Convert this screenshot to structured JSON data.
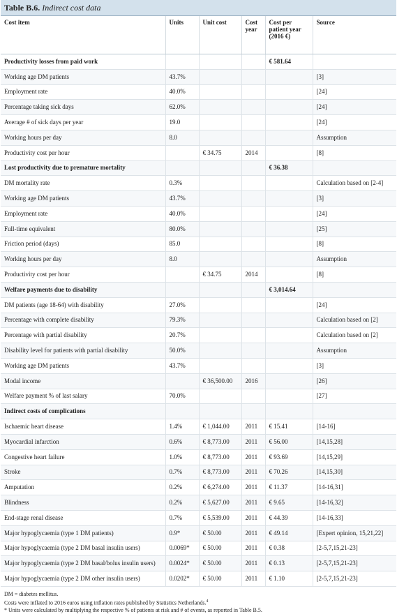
{
  "title": {
    "label": "Table B.6.",
    "text": "Indirect cost data"
  },
  "table": {
    "columns": [
      "Cost item",
      "Units",
      "Unit cost",
      "Cost year",
      "Cost per patient year (2016 €)",
      "Source"
    ],
    "rows": [
      {
        "section": "Productivity losses from paid work",
        "cost": "€ 581.64"
      },
      {
        "item": "Working age DM patients",
        "units": "43.7%",
        "source": "[3]"
      },
      {
        "item": "Employment rate",
        "units": "40.0%",
        "source": "[24]"
      },
      {
        "item": "Percentage taking sick days",
        "units": "62.0%",
        "source": "[24]"
      },
      {
        "item": "Average # of sick days per year",
        "units": "19.0",
        "source": "[24]"
      },
      {
        "item": "Working hours per day",
        "units": "8.0",
        "source": "Assumption"
      },
      {
        "item": "Productivity cost per hour",
        "unit_cost": "€ 34.75",
        "year": "2014",
        "source": "[8]"
      },
      {
        "section": "Lost productivity due to premature mortality",
        "cost": "€ 36.38"
      },
      {
        "item": "DM mortality rate",
        "units": "0.3%",
        "source": "Calculation based on [2-4]"
      },
      {
        "item": "Working age DM patients",
        "units": "43.7%",
        "source": "[3]"
      },
      {
        "item": "Employment rate",
        "units": "40.0%",
        "source": "[24]"
      },
      {
        "item": "Full-time equivalent",
        "units": "80.0%",
        "source": "[25]"
      },
      {
        "item": "Friction period (days)",
        "units": "85.0",
        "source": "[8]"
      },
      {
        "item": "Working hours per day",
        "units": "8.0",
        "source": "Assumption"
      },
      {
        "item": "Productivity cost per hour",
        "unit_cost": "€ 34.75",
        "year": "2014",
        "source": "[8]"
      },
      {
        "section": "Welfare payments due to disability",
        "cost": "€ 3,014.64"
      },
      {
        "item": "DM patients (age 18-64) with disability",
        "units": "27.0%",
        "source": "[24]"
      },
      {
        "item": "Percentage with complete disability",
        "units": "79.3%",
        "source": "Calculation based on [2]"
      },
      {
        "item": "Percentage with partial disability",
        "units": "20.7%",
        "source": "Calculation based on [2]"
      },
      {
        "item": "Disability level for patients with partial disability",
        "units": "50.0%",
        "source": "Assumption"
      },
      {
        "item": "Working age DM patients",
        "units": "43.7%",
        "source": "[3]"
      },
      {
        "item": "Modal income",
        "unit_cost": "€ 36,500.00",
        "year": "2016",
        "source": "[26]"
      },
      {
        "item": "Welfare payment % of last salary",
        "units": "70.0%",
        "source": "[27]"
      },
      {
        "section": "Indirect costs of complications"
      },
      {
        "item": "Ischaemic heart disease",
        "units": "1.4%",
        "unit_cost": "€ 1,044.00",
        "year": "2011",
        "cost": "€ 15.41",
        "source": "[14-16]"
      },
      {
        "item": "Myocardial infarction",
        "units": "0.6%",
        "unit_cost": "€ 8,773.00",
        "year": "2011",
        "cost": "€ 56.00",
        "source": "[14,15,28]"
      },
      {
        "item": "Congestive heart failure",
        "units": "1.0%",
        "unit_cost": "€ 8,773.00",
        "year": "2011",
        "cost": "€ 93.69",
        "source": "[14,15,29]"
      },
      {
        "item": "Stroke",
        "units": "0.7%",
        "unit_cost": "€ 8,773.00",
        "year": "2011",
        "cost": "€ 70.26",
        "source": "[14,15,30]"
      },
      {
        "item": "Amputation",
        "units": "0.2%",
        "unit_cost": "€ 6,274.00",
        "year": "2011",
        "cost": "€ 11.37",
        "source": "[14-16,31]"
      },
      {
        "item": "Blindness",
        "units": "0.2%",
        "unit_cost": "€ 5,627.00",
        "year": "2011",
        "cost": "€ 9.65",
        "source": "[14-16,32]"
      },
      {
        "item": "End-stage renal disease",
        "units": "0.7%",
        "unit_cost": "€ 5,539.00",
        "year": "2011",
        "cost": "€ 44.39",
        "source": "[14-16,33]"
      },
      {
        "item": "Major hypoglycaemia (type 1 DM patients)",
        "units": "0.9*",
        "unit_cost": "€ 50.00",
        "year": "2011",
        "cost": "€ 49.14",
        "source": "[Expert opinion, 15,21,22]"
      },
      {
        "item": "Major hypoglycaemia (type 2 DM basal insulin users)",
        "units": "0.0069*",
        "unit_cost": "€ 50.00",
        "year": "2011",
        "cost": "€ 0.38",
        "source": "[2-5,7,15,21-23]"
      },
      {
        "item": "Major hypoglycaemia (type 2 DM basal/bolus insulin users)",
        "units": "0.0024*",
        "unit_cost": "€ 50.00",
        "year": "2011",
        "cost": "€ 0.13",
        "source": "[2-5,7,15,21-23]"
      },
      {
        "item": "Major hypoglycaemia (type 2 DM other insulin users)",
        "units": "0.0202*",
        "unit_cost": "€ 50.00",
        "year": "2011",
        "cost": "€ 1.10",
        "source": "[2-5,7,15,21-23]"
      }
    ]
  },
  "footnotes": [
    {
      "text": "DM = diabetes mellitus."
    },
    {
      "text": "Costs were inflated to 2016 euros using inflation rates published by Statistics Netherlands.",
      "ref": "4"
    },
    {
      "text": "* Units were calculated by multiplying the respective % of patients at risk and # of events, as reported in Table B.5."
    }
  ]
}
